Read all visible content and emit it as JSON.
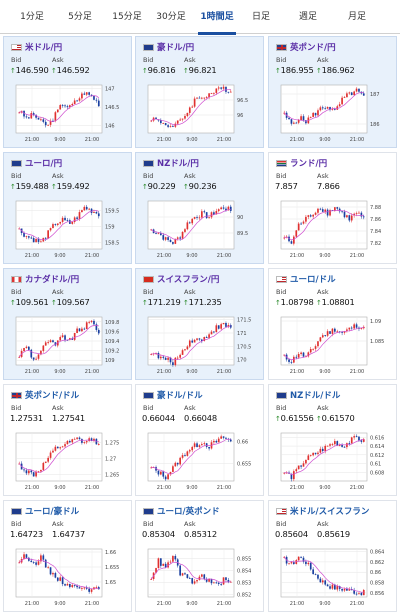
{
  "tabs": [
    {
      "label": "1分足",
      "active": false
    },
    {
      "label": "5分足",
      "active": false
    },
    {
      "label": "15分足",
      "active": false
    },
    {
      "label": "30分足",
      "active": false
    },
    {
      "label": "1時間足",
      "active": true
    },
    {
      "label": "日足",
      "active": false
    },
    {
      "label": "週足",
      "active": false
    },
    {
      "label": "月足",
      "active": false
    }
  ],
  "labels": {
    "bid": "Bid",
    "ask": "Ask"
  },
  "colors": {
    "up_candle": "#e03030",
    "down_candle": "#1a3fa0",
    "ma_line": "#d050d0",
    "purple_title": "#5a2ea6",
    "blue_title": "#1f5aa8",
    "highlight_bg": "#e8f1fb"
  },
  "cards": [
    {
      "title": "米ドル/円",
      "flag": "us",
      "bid": "146.590",
      "ask": "146.592",
      "dir": "up",
      "hl": true,
      "yticks": [
        "147",
        "146.5",
        "146"
      ],
      "xticks": [
        "21:00",
        "9:00",
        "21:00"
      ],
      "trend": [
        146.4,
        146.2,
        146.3,
        146.1,
        146.0,
        146.3,
        146.6,
        146.5,
        146.7,
        146.9,
        146.8,
        146.6
      ],
      "ylim": [
        145.8,
        147.1
      ]
    },
    {
      "title": "豪ドル/円",
      "flag": "au",
      "bid": "96.816",
      "ask": "96.821",
      "dir": "up",
      "hl": true,
      "yticks": [
        "96.5",
        "96"
      ],
      "xticks": [
        "21:00",
        "9:00",
        "21:00"
      ],
      "trend": [
        95.9,
        95.8,
        95.7,
        95.6,
        95.8,
        96.1,
        96.5,
        96.6,
        96.7,
        96.8,
        96.9,
        96.8
      ],
      "ylim": [
        95.4,
        97.0
      ]
    },
    {
      "title": "英ポンド/円",
      "flag": "gb",
      "bid": "186.955",
      "ask": "186.962",
      "dir": "up",
      "hl": true,
      "yticks": [
        "187",
        "186"
      ],
      "xticks": [
        "21:00",
        "9:00",
        "21:00"
      ],
      "trend": [
        186.3,
        186.0,
        186.2,
        186.1,
        186.3,
        186.5,
        186.6,
        186.4,
        186.8,
        187.0,
        187.1,
        186.9
      ],
      "ylim": [
        185.7,
        187.3
      ]
    },
    {
      "title": "ユーロ/円",
      "flag": "eu",
      "bid": "159.488",
      "ask": "159.492",
      "dir": "up",
      "hl": true,
      "yticks": [
        "159.5",
        "159",
        "158.5"
      ],
      "xticks": [
        "21:00",
        "9:00",
        "21:00"
      ],
      "trend": [
        158.9,
        158.7,
        158.6,
        158.5,
        158.8,
        159.1,
        159.2,
        159.1,
        159.3,
        159.6,
        159.5,
        159.4
      ],
      "ylim": [
        158.3,
        159.8
      ]
    },
    {
      "title": "NZドル/円",
      "flag": "nz",
      "bid": "90.229",
      "ask": "90.236",
      "dir": "up",
      "hl": true,
      "yticks": [
        "90",
        "89.5"
      ],
      "xticks": [
        "21:00",
        "9:00",
        "21:00"
      ],
      "trend": [
        89.6,
        89.5,
        89.3,
        89.2,
        89.4,
        89.8,
        90.0,
        90.1,
        90.0,
        90.2,
        90.3,
        90.2
      ],
      "ylim": [
        89.0,
        90.5
      ]
    },
    {
      "title": "ランド/円",
      "flag": "za",
      "bid": "7.857",
      "ask": "7.866",
      "dir": "none",
      "hl": false,
      "yticks": [
        "7.88",
        "7.86",
        "7.84",
        "7.82"
      ],
      "xticks": [
        "21:00",
        "9:00",
        "21:00"
      ],
      "trend": [
        7.83,
        7.82,
        7.85,
        7.86,
        7.87,
        7.88,
        7.87,
        7.88,
        7.87,
        7.86,
        7.87,
        7.86
      ],
      "ylim": [
        7.81,
        7.89
      ]
    },
    {
      "title": "カナダドル/円",
      "flag": "ca",
      "bid": "109.561",
      "ask": "109.567",
      "dir": "up",
      "hl": true,
      "yticks": [
        "109.8",
        "109.6",
        "109.4",
        "109.2",
        "109"
      ],
      "xticks": [
        "21:00",
        "9:00",
        "21:00"
      ],
      "trend": [
        109.1,
        109.3,
        109.0,
        109.2,
        109.4,
        109.3,
        109.5,
        109.4,
        109.6,
        109.7,
        109.8,
        109.6
      ],
      "ylim": [
        108.9,
        109.9
      ]
    },
    {
      "title": "スイスフラン/円",
      "flag": "ch",
      "bid": "171.219",
      "ask": "171.235",
      "dir": "up",
      "hl": true,
      "yticks": [
        "171.5",
        "171",
        "170.5",
        "170"
      ],
      "xticks": [
        "21:00",
        "9:00",
        "21:00"
      ],
      "trend": [
        170.3,
        170.1,
        170.0,
        169.9,
        170.2,
        170.6,
        170.8,
        170.7,
        171.0,
        171.2,
        171.3,
        171.2
      ],
      "ylim": [
        169.8,
        171.6
      ]
    },
    {
      "title": "ユーロ/ドル",
      "flag": "us",
      "bid": "1.08798",
      "ask": "1.08801",
      "dir": "up",
      "hl": false,
      "yticks": [
        "1.09",
        "1.085"
      ],
      "xticks": [
        "21:00",
        "9:00",
        "21:00"
      ],
      "trend": [
        1.081,
        1.08,
        1.082,
        1.081,
        1.083,
        1.086,
        1.087,
        1.088,
        1.087,
        1.088,
        1.089,
        1.088
      ],
      "ylim": [
        1.079,
        1.091
      ]
    },
    {
      "title": "英ポンド/ドル",
      "flag": "gb",
      "bid": "1.27531",
      "ask": "1.27541",
      "dir": "none",
      "hl": false,
      "yticks": [
        "1.275",
        "1.27",
        "1.265"
      ],
      "xticks": [
        "21:00",
        "9:00",
        "21:00"
      ],
      "trend": [
        1.268,
        1.266,
        1.265,
        1.267,
        1.27,
        1.273,
        1.274,
        1.275,
        1.276,
        1.275,
        1.276,
        1.275
      ],
      "ylim": [
        1.263,
        1.278
      ]
    },
    {
      "title": "豪ドル/ドル",
      "flag": "au",
      "bid": "0.66044",
      "ask": "0.66048",
      "dir": "none",
      "hl": false,
      "yticks": [
        "0.66",
        "0.655"
      ],
      "xticks": [
        "21:00",
        "9:00",
        "21:00"
      ],
      "trend": [
        0.654,
        0.653,
        0.652,
        0.654,
        0.656,
        0.658,
        0.659,
        0.66,
        0.659,
        0.66,
        0.661,
        0.66
      ],
      "ylim": [
        0.651,
        0.662
      ]
    },
    {
      "title": "NZドル/ドル",
      "flag": "nz",
      "bid": "0.61556",
      "ask": "0.61570",
      "dir": "up",
      "hl": false,
      "yticks": [
        "0.616",
        "0.614",
        "0.612",
        "0.61",
        "0.608"
      ],
      "xticks": [
        "21:00",
        "9:00",
        "21:00"
      ],
      "trend": [
        0.608,
        0.607,
        0.609,
        0.611,
        0.612,
        0.613,
        0.614,
        0.615,
        0.614,
        0.615,
        0.616,
        0.615
      ],
      "ylim": [
        0.606,
        0.617
      ]
    },
    {
      "title": "ユーロ/豪ドル",
      "flag": "eu",
      "bid": "1.64723",
      "ask": "1.64737",
      "dir": "none",
      "hl": false,
      "yticks": [
        "1.66",
        "1.655",
        "1.65"
      ],
      "xticks": [
        "21:00",
        "9:00",
        "21:00"
      ],
      "trend": [
        1.657,
        1.659,
        1.656,
        1.658,
        1.654,
        1.652,
        1.65,
        1.649,
        1.648,
        1.649,
        1.647,
        1.648
      ],
      "ylim": [
        1.645,
        1.661
      ]
    },
    {
      "title": "ユーロ/英ポンド",
      "flag": "eu",
      "bid": "0.85304",
      "ask": "0.85312",
      "dir": "none",
      "hl": false,
      "yticks": [
        "0.855",
        "0.854",
        "0.853",
        "0.852"
      ],
      "xticks": [
        "21:00",
        "9:00",
        "21:00"
      ],
      "trend": [
        0.8535,
        0.8548,
        0.8542,
        0.8552,
        0.8538,
        0.8533,
        0.853,
        0.8536,
        0.8531,
        0.8528,
        0.8532,
        0.853
      ],
      "ylim": [
        0.8518,
        0.8558
      ]
    },
    {
      "title": "米ドル/スイスフラン",
      "flag": "us",
      "bid": "0.85604",
      "ask": "0.85619",
      "dir": "none",
      "hl": false,
      "yticks": [
        "0.864",
        "0.862",
        "0.86",
        "0.858",
        "0.856"
      ],
      "xticks": [
        "21:00",
        "9:00",
        "21:00"
      ],
      "trend": [
        0.8625,
        0.8615,
        0.863,
        0.862,
        0.86,
        0.8585,
        0.8575,
        0.857,
        0.8568,
        0.8565,
        0.8562,
        0.856
      ],
      "ylim": [
        0.8552,
        0.8645
      ]
    }
  ]
}
